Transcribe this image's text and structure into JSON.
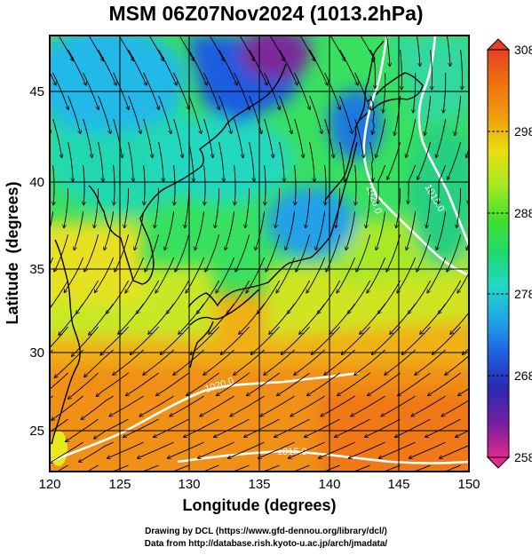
{
  "title": "MSM 06Z07Nov2024 (1013.2hPa)",
  "axes": {
    "xlabel": "Longitude (degrees)",
    "ylabel": "Latitude  (degrees)",
    "xticks": [
      "120",
      "125",
      "130",
      "135",
      "140",
      "145",
      "150"
    ],
    "yticks": [
      "25",
      "30",
      "35",
      "40",
      "45"
    ],
    "xrange": [
      120,
      150
    ],
    "yrange": [
      22.4,
      47.6
    ],
    "grid": true
  },
  "colorbar": {
    "range": [
      258,
      308
    ],
    "tick_labels": [
      "308",
      "298",
      "288",
      "278",
      "268",
      "258"
    ],
    "colors": [
      "#e02a8c",
      "#7a1fa0",
      "#2a2ab0",
      "#1f5ce0",
      "#1fa0e8",
      "#20d8c8",
      "#20d870",
      "#40e030",
      "#a8e820",
      "#e8e010",
      "#f0a010",
      "#f07010",
      "#e84020"
    ]
  },
  "contours": [
    {
      "label": "1020.0"
    },
    {
      "label": "1015.0"
    },
    {
      "label": "1020.0"
    },
    {
      "label": "1015.0"
    }
  ],
  "credits": {
    "line1": "Drawing by DCL (https://www.gfd-dennou.org/library/dcl/)",
    "line2": "Data from http://database.rish.kyoto-u.ac.jp/arch/jmadata/"
  }
}
